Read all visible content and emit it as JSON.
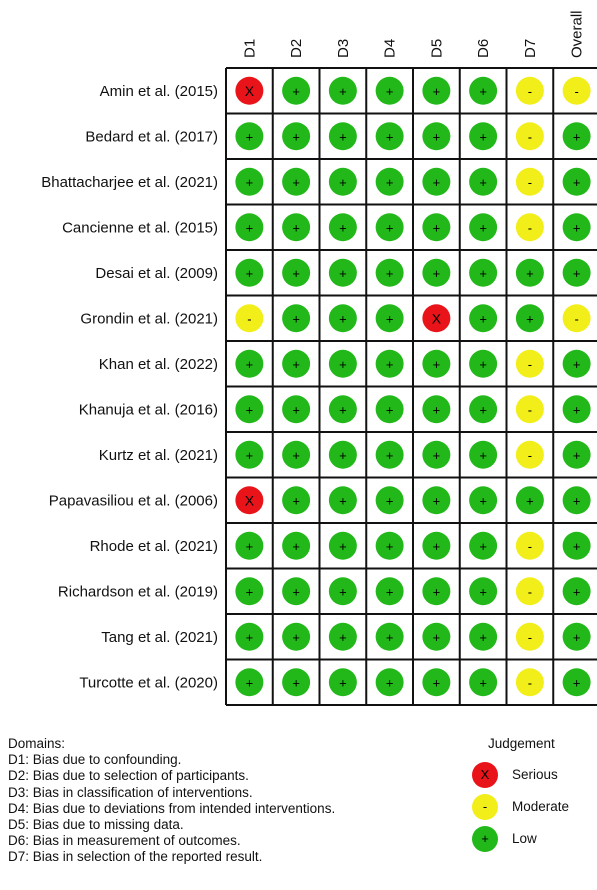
{
  "chart_data": {
    "type": "table",
    "domains": [
      "D1",
      "D2",
      "D3",
      "D4",
      "D5",
      "D6",
      "D7",
      "Overall"
    ],
    "studies": [
      {
        "name": "Amin et al. (2015)",
        "judgements": [
          "serious",
          "low",
          "low",
          "low",
          "low",
          "low",
          "moderate",
          "moderate"
        ]
      },
      {
        "name": "Bedard et al. (2017)",
        "judgements": [
          "low",
          "low",
          "low",
          "low",
          "low",
          "low",
          "moderate",
          "low"
        ]
      },
      {
        "name": "Bhattacharjee et al. (2021)",
        "judgements": [
          "low",
          "low",
          "low",
          "low",
          "low",
          "low",
          "moderate",
          "low"
        ]
      },
      {
        "name": "Cancienne et al. (2015)",
        "judgements": [
          "low",
          "low",
          "low",
          "low",
          "low",
          "low",
          "moderate",
          "low"
        ]
      },
      {
        "name": "Desai et al. (2009)",
        "judgements": [
          "low",
          "low",
          "low",
          "low",
          "low",
          "low",
          "low",
          "low"
        ]
      },
      {
        "name": "Grondin et al. (2021)",
        "judgements": [
          "moderate",
          "low",
          "low",
          "low",
          "serious",
          "low",
          "low",
          "moderate"
        ]
      },
      {
        "name": "Khan et al. (2022)",
        "judgements": [
          "low",
          "low",
          "low",
          "low",
          "low",
          "low",
          "moderate",
          "low"
        ]
      },
      {
        "name": "Khanuja et al. (2016)",
        "judgements": [
          "low",
          "low",
          "low",
          "low",
          "low",
          "low",
          "moderate",
          "low"
        ]
      },
      {
        "name": "Kurtz et al. (2021)",
        "judgements": [
          "low",
          "low",
          "low",
          "low",
          "low",
          "low",
          "moderate",
          "low"
        ]
      },
      {
        "name": "Papavasiliou et al. (2006)",
        "judgements": [
          "serious",
          "low",
          "low",
          "low",
          "low",
          "low",
          "low",
          "low"
        ]
      },
      {
        "name": "Rhode et al. (2021)",
        "judgements": [
          "low",
          "low",
          "low",
          "low",
          "low",
          "low",
          "moderate",
          "low"
        ]
      },
      {
        "name": "Richardson et al. (2019)",
        "judgements": [
          "low",
          "low",
          "low",
          "low",
          "low",
          "low",
          "moderate",
          "low"
        ]
      },
      {
        "name": "Tang et al. (2021)",
        "judgements": [
          "low",
          "low",
          "low",
          "low",
          "low",
          "low",
          "moderate",
          "low"
        ]
      },
      {
        "name": "Turcotte et al. (2020)",
        "judgements": [
          "low",
          "low",
          "low",
          "low",
          "low",
          "low",
          "moderate",
          "low"
        ]
      }
    ],
    "judgement_levels": {
      "serious": {
        "symbol": "X",
        "color": "#e8141a",
        "label": "Serious"
      },
      "moderate": {
        "symbol": "-",
        "color": "#f2ee1a",
        "label": "Moderate"
      },
      "low": {
        "symbol": "+",
        "color": "#22b81a",
        "label": "Low"
      }
    },
    "legend_title": "Judgement",
    "legend_order": [
      "serious",
      "moderate",
      "low"
    ]
  },
  "footer": {
    "heading": "Domains:",
    "lines": [
      "D1: Bias due to confounding.",
      "D2: Bias due to selection of participants.",
      "D3: Bias in classification of interventions.",
      "D4: Bias due to deviations from intended interventions.",
      "D5: Bias due to missing data.",
      "D6: Bias in measurement of outcomes.",
      "D7: Bias in selection of the reported result."
    ]
  }
}
